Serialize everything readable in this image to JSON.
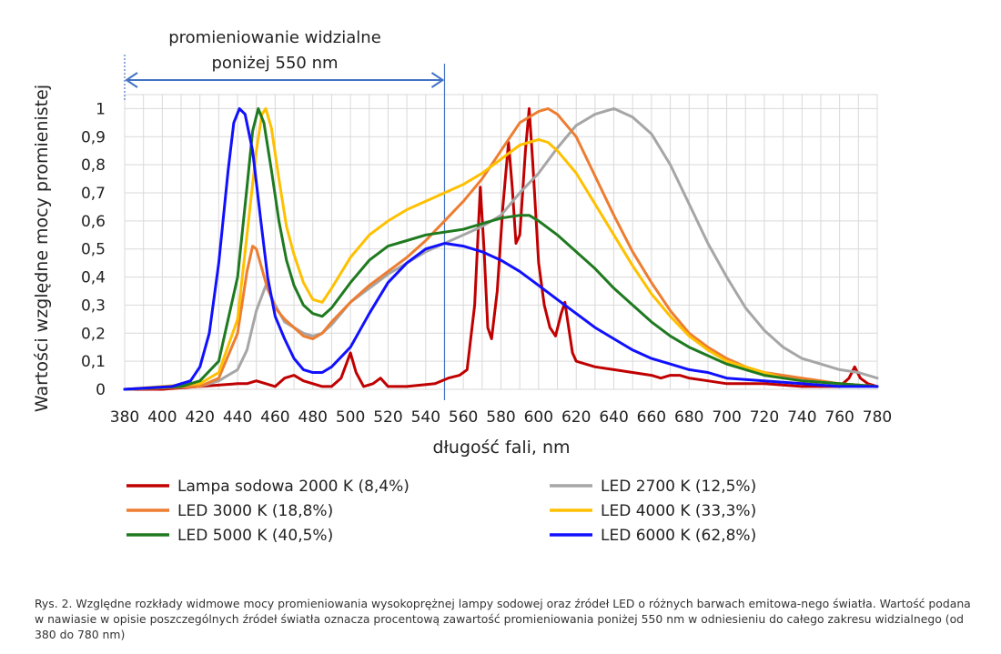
{
  "chart_data": {
    "type": "line",
    "xlabel": "długość fali, nm",
    "ylabel": "Wartości  względne mocy  promienistej",
    "xlim": [
      380,
      780
    ],
    "ylim": [
      0,
      1.05
    ],
    "x_ticks": [
      "380",
      "400",
      "420",
      "440",
      "460",
      "480",
      "500",
      "520",
      "540",
      "560",
      "580",
      "600",
      "620",
      "640",
      "660",
      "680",
      "700",
      "720",
      "740",
      "760",
      "780"
    ],
    "y_ticks": [
      {
        "value": 0,
        "label": "0"
      },
      {
        "value": 0.1,
        "label": "0,1"
      },
      {
        "value": 0.2,
        "label": "0,2"
      },
      {
        "value": 0.3,
        "label": "0,3"
      },
      {
        "value": 0.4,
        "label": "0,4"
      },
      {
        "value": 0.5,
        "label": "0,5"
      },
      {
        "value": 0.6,
        "label": "0,6"
      },
      {
        "value": 0.7,
        "label": "0,7"
      },
      {
        "value": 0.8,
        "label": "0,8"
      },
      {
        "value": 0.9,
        "label": "0,9"
      },
      {
        "value": 1,
        "label": "1"
      }
    ],
    "grid": true,
    "annotation": {
      "line1": "promieniowanie widzialne",
      "line2": "poniżej 550 nm",
      "from": 380,
      "to": 550
    },
    "series": [
      {
        "name": "Lampa sodowa 2000 K (8,4%)",
        "color": "#c00000",
        "points": [
          [
            380,
            0.0
          ],
          [
            400,
            0.0
          ],
          [
            420,
            0.01
          ],
          [
            440,
            0.02
          ],
          [
            445,
            0.02
          ],
          [
            450,
            0.03
          ],
          [
            455,
            0.02
          ],
          [
            460,
            0.01
          ],
          [
            465,
            0.04
          ],
          [
            470,
            0.05
          ],
          [
            475,
            0.03
          ],
          [
            480,
            0.02
          ],
          [
            485,
            0.01
          ],
          [
            490,
            0.01
          ],
          [
            495,
            0.04
          ],
          [
            500,
            0.13
          ],
          [
            503,
            0.06
          ],
          [
            507,
            0.01
          ],
          [
            512,
            0.02
          ],
          [
            516,
            0.04
          ],
          [
            520,
            0.01
          ],
          [
            530,
            0.01
          ],
          [
            545,
            0.02
          ],
          [
            552,
            0.04
          ],
          [
            558,
            0.05
          ],
          [
            562,
            0.07
          ],
          [
            566,
            0.3
          ],
          [
            569,
            0.72
          ],
          [
            571,
            0.5
          ],
          [
            573,
            0.22
          ],
          [
            575,
            0.18
          ],
          [
            578,
            0.35
          ],
          [
            581,
            0.65
          ],
          [
            584,
            0.88
          ],
          [
            586,
            0.72
          ],
          [
            588,
            0.52
          ],
          [
            590,
            0.55
          ],
          [
            593,
            0.85
          ],
          [
            595,
            1.0
          ],
          [
            597,
            0.8
          ],
          [
            600,
            0.45
          ],
          [
            603,
            0.3
          ],
          [
            606,
            0.22
          ],
          [
            609,
            0.19
          ],
          [
            612,
            0.27
          ],
          [
            614,
            0.31
          ],
          [
            616,
            0.22
          ],
          [
            618,
            0.13
          ],
          [
            620,
            0.1
          ],
          [
            630,
            0.08
          ],
          [
            640,
            0.07
          ],
          [
            650,
            0.06
          ],
          [
            660,
            0.05
          ],
          [
            665,
            0.04
          ],
          [
            670,
            0.05
          ],
          [
            675,
            0.05
          ],
          [
            680,
            0.04
          ],
          [
            690,
            0.03
          ],
          [
            700,
            0.02
          ],
          [
            720,
            0.02
          ],
          [
            740,
            0.01
          ],
          [
            760,
            0.01
          ],
          [
            765,
            0.04
          ],
          [
            768,
            0.08
          ],
          [
            771,
            0.04
          ],
          [
            775,
            0.02
          ],
          [
            780,
            0.01
          ]
        ]
      },
      {
        "name": "LED 2700 K (12,5%)",
        "color": "#a6a6a6",
        "points": [
          [
            380,
            0.0
          ],
          [
            420,
            0.01
          ],
          [
            430,
            0.03
          ],
          [
            440,
            0.07
          ],
          [
            445,
            0.14
          ],
          [
            450,
            0.28
          ],
          [
            455,
            0.37
          ],
          [
            460,
            0.3
          ],
          [
            465,
            0.24
          ],
          [
            470,
            0.22
          ],
          [
            475,
            0.2
          ],
          [
            480,
            0.19
          ],
          [
            485,
            0.2
          ],
          [
            490,
            0.23
          ],
          [
            500,
            0.31
          ],
          [
            510,
            0.36
          ],
          [
            520,
            0.41
          ],
          [
            530,
            0.45
          ],
          [
            540,
            0.49
          ],
          [
            550,
            0.52
          ],
          [
            560,
            0.55
          ],
          [
            570,
            0.58
          ],
          [
            580,
            0.62
          ],
          [
            590,
            0.7
          ],
          [
            600,
            0.77
          ],
          [
            610,
            0.86
          ],
          [
            620,
            0.94
          ],
          [
            630,
            0.98
          ],
          [
            640,
            1.0
          ],
          [
            650,
            0.97
          ],
          [
            660,
            0.91
          ],
          [
            670,
            0.8
          ],
          [
            680,
            0.66
          ],
          [
            690,
            0.52
          ],
          [
            700,
            0.4
          ],
          [
            710,
            0.29
          ],
          [
            720,
            0.21
          ],
          [
            730,
            0.15
          ],
          [
            740,
            0.11
          ],
          [
            750,
            0.09
          ],
          [
            760,
            0.07
          ],
          [
            770,
            0.06
          ],
          [
            780,
            0.04
          ]
        ]
      },
      {
        "name": "LED 3000 K (18,8%)",
        "color": "#ed7d31",
        "points": [
          [
            380,
            0.0
          ],
          [
            420,
            0.01
          ],
          [
            430,
            0.04
          ],
          [
            440,
            0.2
          ],
          [
            445,
            0.42
          ],
          [
            448,
            0.51
          ],
          [
            450,
            0.5
          ],
          [
            455,
            0.38
          ],
          [
            460,
            0.29
          ],
          [
            465,
            0.25
          ],
          [
            470,
            0.22
          ],
          [
            475,
            0.19
          ],
          [
            480,
            0.18
          ],
          [
            485,
            0.2
          ],
          [
            490,
            0.24
          ],
          [
            500,
            0.31
          ],
          [
            510,
            0.37
          ],
          [
            520,
            0.42
          ],
          [
            530,
            0.47
          ],
          [
            540,
            0.53
          ],
          [
            550,
            0.6
          ],
          [
            560,
            0.67
          ],
          [
            570,
            0.75
          ],
          [
            580,
            0.85
          ],
          [
            590,
            0.95
          ],
          [
            600,
            0.99
          ],
          [
            605,
            1.0
          ],
          [
            610,
            0.98
          ],
          [
            620,
            0.9
          ],
          [
            630,
            0.76
          ],
          [
            640,
            0.62
          ],
          [
            650,
            0.49
          ],
          [
            660,
            0.38
          ],
          [
            670,
            0.28
          ],
          [
            680,
            0.2
          ],
          [
            690,
            0.15
          ],
          [
            700,
            0.11
          ],
          [
            710,
            0.08
          ],
          [
            720,
            0.06
          ],
          [
            730,
            0.05
          ],
          [
            740,
            0.04
          ],
          [
            750,
            0.03
          ],
          [
            760,
            0.02
          ],
          [
            780,
            0.01
          ]
        ]
      },
      {
        "name": "LED 4000 K (33,3%)",
        "color": "#ffc000",
        "points": [
          [
            380,
            0.0
          ],
          [
            420,
            0.02
          ],
          [
            430,
            0.06
          ],
          [
            440,
            0.25
          ],
          [
            445,
            0.55
          ],
          [
            450,
            0.85
          ],
          [
            453,
            0.98
          ],
          [
            455,
            1.0
          ],
          [
            458,
            0.93
          ],
          [
            462,
            0.75
          ],
          [
            466,
            0.58
          ],
          [
            470,
            0.48
          ],
          [
            475,
            0.38
          ],
          [
            480,
            0.32
          ],
          [
            485,
            0.31
          ],
          [
            490,
            0.36
          ],
          [
            500,
            0.47
          ],
          [
            510,
            0.55
          ],
          [
            520,
            0.6
          ],
          [
            530,
            0.64
          ],
          [
            540,
            0.67
          ],
          [
            550,
            0.7
          ],
          [
            560,
            0.73
          ],
          [
            570,
            0.77
          ],
          [
            580,
            0.82
          ],
          [
            590,
            0.87
          ],
          [
            600,
            0.89
          ],
          [
            605,
            0.88
          ],
          [
            610,
            0.85
          ],
          [
            620,
            0.77
          ],
          [
            630,
            0.66
          ],
          [
            640,
            0.55
          ],
          [
            650,
            0.44
          ],
          [
            660,
            0.34
          ],
          [
            670,
            0.26
          ],
          [
            680,
            0.19
          ],
          [
            690,
            0.14
          ],
          [
            700,
            0.1
          ],
          [
            710,
            0.08
          ],
          [
            720,
            0.06
          ],
          [
            730,
            0.04
          ],
          [
            740,
            0.03
          ],
          [
            760,
            0.02
          ],
          [
            780,
            0.01
          ]
        ]
      },
      {
        "name": "LED 5000 K (40,5%)",
        "color": "#1f7a1f",
        "points": [
          [
            380,
            0.0
          ],
          [
            410,
            0.01
          ],
          [
            420,
            0.03
          ],
          [
            430,
            0.1
          ],
          [
            440,
            0.4
          ],
          [
            445,
            0.72
          ],
          [
            448,
            0.92
          ],
          [
            451,
            1.0
          ],
          [
            454,
            0.95
          ],
          [
            458,
            0.78
          ],
          [
            462,
            0.6
          ],
          [
            466,
            0.46
          ],
          [
            470,
            0.37
          ],
          [
            475,
            0.3
          ],
          [
            480,
            0.27
          ],
          [
            485,
            0.26
          ],
          [
            490,
            0.29
          ],
          [
            500,
            0.38
          ],
          [
            510,
            0.46
          ],
          [
            520,
            0.51
          ],
          [
            530,
            0.53
          ],
          [
            540,
            0.55
          ],
          [
            550,
            0.56
          ],
          [
            560,
            0.57
          ],
          [
            570,
            0.59
          ],
          [
            580,
            0.61
          ],
          [
            590,
            0.62
          ],
          [
            595,
            0.62
          ],
          [
            600,
            0.6
          ],
          [
            610,
            0.55
          ],
          [
            620,
            0.49
          ],
          [
            630,
            0.43
          ],
          [
            640,
            0.36
          ],
          [
            650,
            0.3
          ],
          [
            660,
            0.24
          ],
          [
            670,
            0.19
          ],
          [
            680,
            0.15
          ],
          [
            690,
            0.12
          ],
          [
            700,
            0.09
          ],
          [
            710,
            0.07
          ],
          [
            720,
            0.05
          ],
          [
            740,
            0.03
          ],
          [
            760,
            0.02
          ],
          [
            780,
            0.01
          ]
        ]
      },
      {
        "name": "LED 6000 K (62,8%)",
        "color": "#1010ff",
        "points": [
          [
            380,
            0.0
          ],
          [
            405,
            0.01
          ],
          [
            415,
            0.03
          ],
          [
            420,
            0.08
          ],
          [
            425,
            0.2
          ],
          [
            430,
            0.45
          ],
          [
            435,
            0.78
          ],
          [
            438,
            0.95
          ],
          [
            441,
            1.0
          ],
          [
            444,
            0.98
          ],
          [
            448,
            0.85
          ],
          [
            452,
            0.62
          ],
          [
            456,
            0.4
          ],
          [
            460,
            0.26
          ],
          [
            465,
            0.18
          ],
          [
            470,
            0.11
          ],
          [
            475,
            0.07
          ],
          [
            480,
            0.06
          ],
          [
            485,
            0.06
          ],
          [
            490,
            0.08
          ],
          [
            500,
            0.15
          ],
          [
            510,
            0.27
          ],
          [
            520,
            0.38
          ],
          [
            530,
            0.45
          ],
          [
            540,
            0.5
          ],
          [
            550,
            0.52
          ],
          [
            560,
            0.51
          ],
          [
            570,
            0.49
          ],
          [
            580,
            0.46
          ],
          [
            590,
            0.42
          ],
          [
            600,
            0.37
          ],
          [
            610,
            0.32
          ],
          [
            620,
            0.27
          ],
          [
            630,
            0.22
          ],
          [
            640,
            0.18
          ],
          [
            650,
            0.14
          ],
          [
            660,
            0.11
          ],
          [
            670,
            0.09
          ],
          [
            680,
            0.07
          ],
          [
            690,
            0.06
          ],
          [
            700,
            0.04
          ],
          [
            720,
            0.03
          ],
          [
            740,
            0.02
          ],
          [
            760,
            0.01
          ],
          [
            780,
            0.01
          ]
        ]
      }
    ]
  },
  "caption": "Rys. 2. Względne rozkłady widmowe mocy promieniowania wysokoprężnej lampy sodowej oraz źródeł LED o różnych barwach emitowa-nego światła. Wartość podana w nawiasie w opisie poszczególnych źródeł światła oznacza procentową zawartość promieniowania poniżej 550 nm w odniesieniu do całego zakresu widzialnego (od 380 do 780 nm)"
}
